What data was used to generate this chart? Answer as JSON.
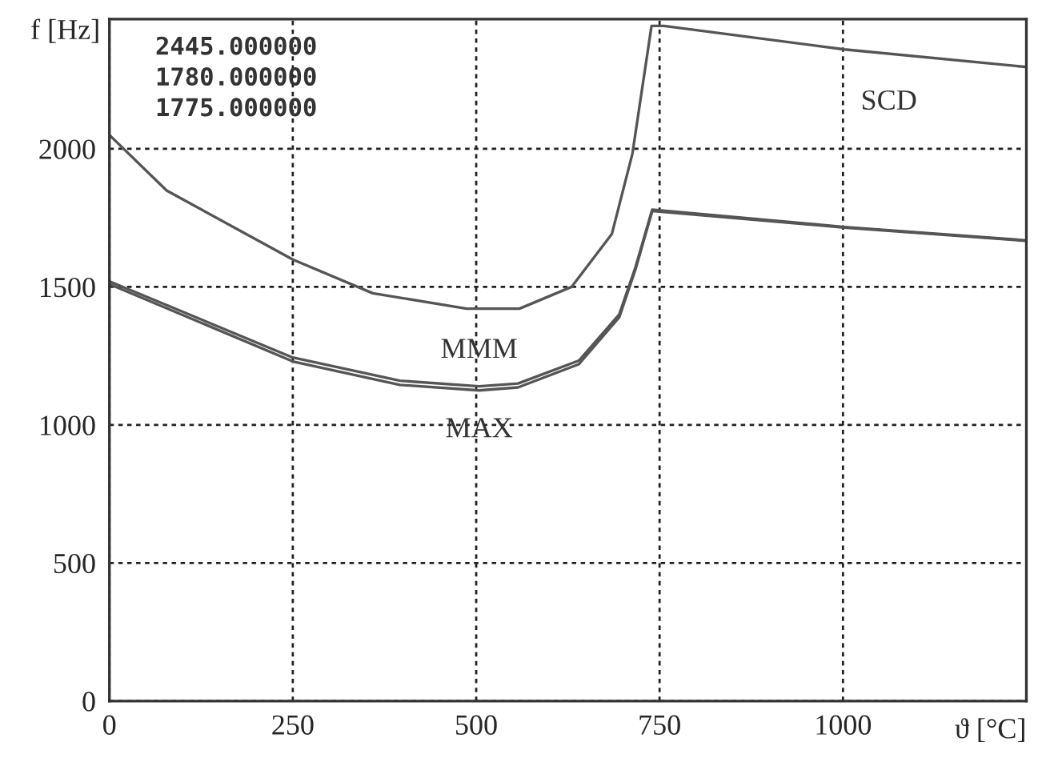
{
  "chart_data": {
    "type": "line",
    "xlabel": "ϑ [°C]",
    "ylabel": "f [Hz]",
    "xlim": [
      0,
      1250
    ],
    "ylim": [
      0,
      2470
    ],
    "xticks": [
      0,
      250,
      500,
      750,
      1000
    ],
    "yticks": [
      0,
      500,
      1000,
      1500,
      2000
    ],
    "grid": true,
    "line_style": "solid",
    "marker": "none",
    "series": [
      {
        "name": "SCD",
        "color": "#555555",
        "x": [
          0,
          78,
          250,
          359,
          487,
          559,
          630,
          685,
          713,
          739,
          756,
          1002,
          1248
        ],
        "values": [
          2050,
          1849,
          1599,
          1477,
          1421,
          1421,
          1500,
          1692,
          1983,
          2445,
          2445,
          2360,
          2297
        ]
      },
      {
        "name": "MMM",
        "color": "#555555",
        "x": [
          0,
          250,
          396,
          504,
          557,
          640,
          695,
          717,
          740,
          1002,
          1248
        ],
        "values": [
          1520,
          1244,
          1160,
          1140,
          1150,
          1233,
          1400,
          1570,
          1780,
          1717,
          1669
        ]
      },
      {
        "name": "MAX",
        "color": "#555555",
        "x": [
          0,
          250,
          396,
          504,
          557,
          640,
          695,
          717,
          740,
          1002,
          1248
        ],
        "values": [
          1510,
          1230,
          1145,
          1125,
          1136,
          1220,
          1390,
          1562,
          1775,
          1715,
          1667
        ]
      }
    ],
    "annotations": [
      "2445.000000",
      "1780.000000",
      "1775.000000"
    ]
  }
}
